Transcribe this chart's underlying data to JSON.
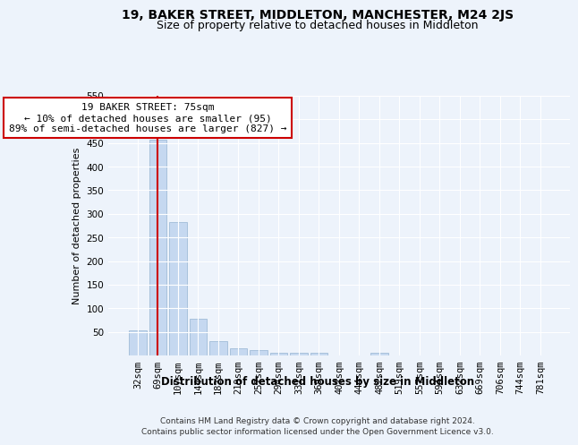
{
  "title1": "19, BAKER STREET, MIDDLETON, MANCHESTER, M24 2JS",
  "title2": "Size of property relative to detached houses in Middleton",
  "xlabel": "Distribution of detached houses by size in Middleton",
  "ylabel": "Number of detached properties",
  "categories": [
    "32sqm",
    "69sqm",
    "107sqm",
    "144sqm",
    "182sqm",
    "219sqm",
    "257sqm",
    "294sqm",
    "332sqm",
    "369sqm",
    "407sqm",
    "444sqm",
    "482sqm",
    "519sqm",
    "557sqm",
    "594sqm",
    "632sqm",
    "669sqm",
    "706sqm",
    "744sqm",
    "781sqm"
  ],
  "values": [
    53,
    457,
    283,
    78,
    30,
    15,
    11,
    5,
    5,
    6,
    0,
    0,
    5,
    0,
    0,
    0,
    0,
    0,
    0,
    0,
    0
  ],
  "bar_color": "#c5d8f0",
  "bar_edge_color": "#a0bcd8",
  "vline_x": 1.0,
  "vline_color": "#cc0000",
  "annotation_text": "19 BAKER STREET: 75sqm\n← 10% of detached houses are smaller (95)\n89% of semi-detached houses are larger (827) →",
  "annotation_box_color": "white",
  "annotation_box_edge": "#cc0000",
  "ylim": [
    0,
    550
  ],
  "yticks": [
    0,
    50,
    100,
    150,
    200,
    250,
    300,
    350,
    400,
    450,
    500,
    550
  ],
  "footer1": "Contains HM Land Registry data © Crown copyright and database right 2024.",
  "footer2": "Contains public sector information licensed under the Open Government Licence v3.0.",
  "bg_color": "#edf3fb",
  "grid_color": "#ffffff",
  "title1_fontsize": 10,
  "title2_fontsize": 9,
  "xlabel_fontsize": 8.5,
  "ylabel_fontsize": 8,
  "tick_fontsize": 7.5,
  "annotation_fontsize": 8,
  "footer_fontsize": 6.5
}
